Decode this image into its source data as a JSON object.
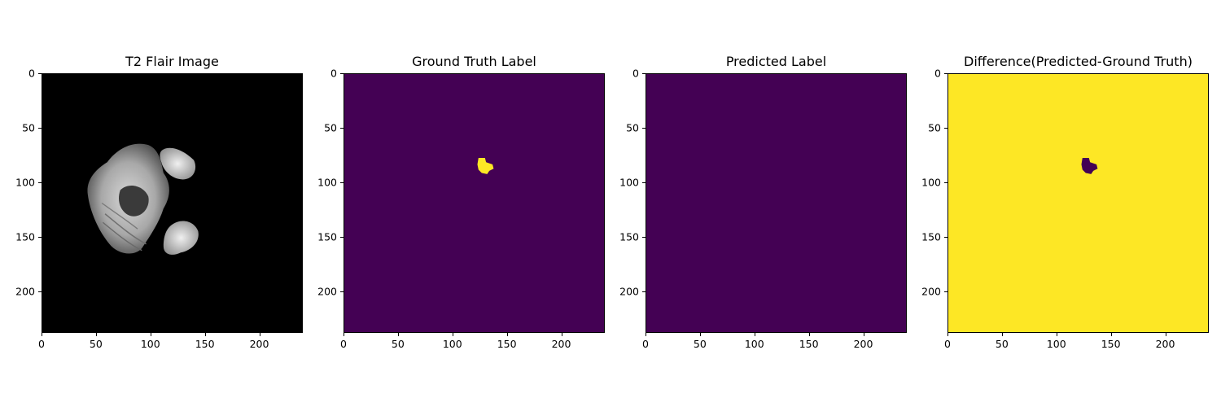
{
  "figure": {
    "panels": [
      {
        "title": "T2 Flair Image",
        "kind": "mri",
        "background": "#000000",
        "x_ticks": [
          "0",
          "50",
          "100",
          "150",
          "200"
        ],
        "y_ticks": [
          "0",
          "50",
          "100",
          "150",
          "200"
        ]
      },
      {
        "title": "Ground Truth Label",
        "kind": "label",
        "background": "#440154",
        "blob_color": "#fde725",
        "x_ticks": [
          "0",
          "50",
          "100",
          "150",
          "200"
        ],
        "y_ticks": [
          "0",
          "50",
          "100",
          "150",
          "200"
        ]
      },
      {
        "title": "Predicted Label",
        "kind": "empty",
        "background": "#440154",
        "x_ticks": [
          "0",
          "50",
          "100",
          "150",
          "200"
        ],
        "y_ticks": [
          "0",
          "50",
          "100",
          "150",
          "200"
        ]
      },
      {
        "title": "Difference(Predicted-Ground Truth)",
        "kind": "label",
        "background": "#fde725",
        "blob_color": "#440154",
        "x_ticks": [
          "0",
          "50",
          "100",
          "150",
          "200"
        ],
        "y_ticks": [
          "0",
          "50",
          "100",
          "150",
          "200"
        ]
      }
    ]
  }
}
